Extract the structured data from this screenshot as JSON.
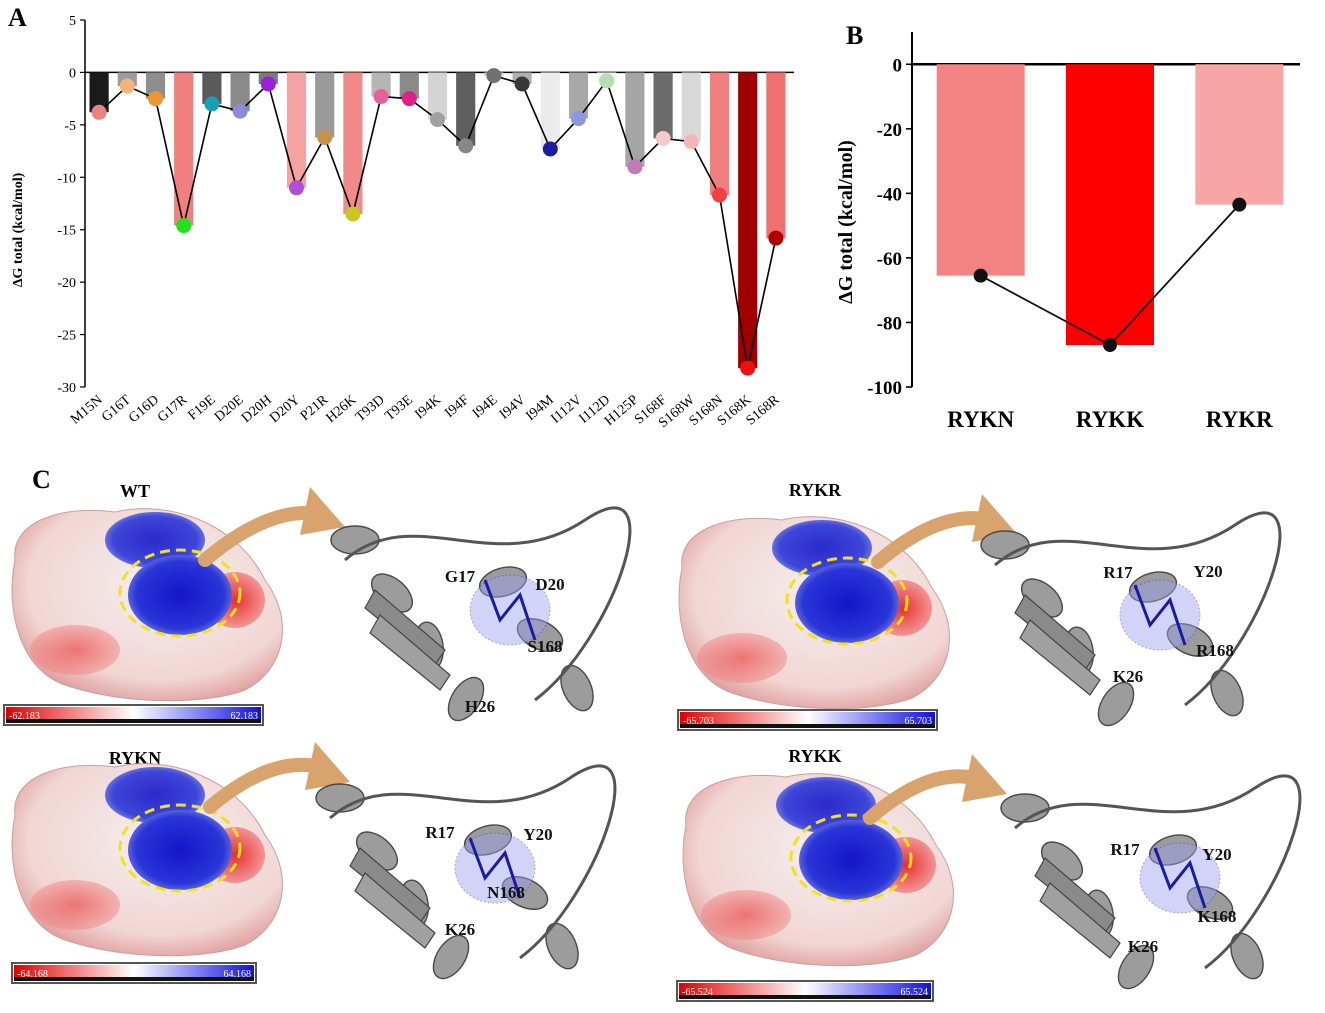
{
  "panels": {
    "a_label": "A",
    "b_label": "B",
    "c_label": "C"
  },
  "chart_data": [
    {
      "type": "bar",
      "panel": "A",
      "ylabel": "ΔG total (kcal/mol)",
      "ylim": [
        -30,
        5
      ],
      "yticks": [
        5,
        0,
        -5,
        -10,
        -15,
        -20,
        -25,
        -30
      ],
      "grid": false,
      "categories": [
        "M15N",
        "G16T",
        "G16D",
        "G17R",
        "F19E",
        "D20E",
        "D20H",
        "D20Y",
        "P21R",
        "H26K",
        "T93D",
        "T93E",
        "I94K",
        "I94F",
        "I94E",
        "I94V",
        "I94M",
        "I112V",
        "I112D",
        "H125P",
        "S168F",
        "S168W",
        "S168N",
        "S168K",
        "S168R"
      ],
      "values": [
        -3.8,
        -1.3,
        -2.5,
        -14.6,
        -3.0,
        -3.7,
        -1.1,
        -11.0,
        -6.2,
        -13.5,
        -2.3,
        -2.5,
        -4.5,
        -7.0,
        -0.3,
        -1.1,
        -7.3,
        -4.4,
        -0.8,
        -9.0,
        -6.3,
        -6.6,
        -11.7,
        -28.2,
        -15.8
      ],
      "bar_colors": [
        "#1a1a1a",
        "#9b9b9b",
        "#8e8e8e",
        "#f08080",
        "#5a5a5a",
        "#8a8a8a",
        "#7a7a7a",
        "#f4a2a2",
        "#9a9a9a",
        "#f28a8a",
        "#b5b5b5",
        "#8a8a8a",
        "#d4d4d4",
        "#5e5e5e",
        "#c8c8c8",
        "#b0b0b0",
        "#ebebeb",
        "#a8a8a8",
        "#f2f2f2",
        "#a5a5a5",
        "#6b6b6b",
        "#d9d9d9",
        "#f08080",
        "#a00000",
        "#f07070"
      ],
      "marker_colors": [
        "#f08080",
        "#f5b27a",
        "#f0952f",
        "#1ee31e",
        "#1aa0b4",
        "#8b8bdc",
        "#9b1fd9",
        "#b050d8",
        "#c8924b",
        "#c8c820",
        "#e8609a",
        "#e02085",
        "#a0a0a0",
        "#888888",
        "#707070",
        "#383838",
        "#1c1c9c",
        "#8b98dc",
        "#b0e0b0",
        "#c07ab8",
        "#f8c8c8",
        "#f5b5b5",
        "#f04040",
        "#f01010",
        "#b00000"
      ]
    },
    {
      "type": "bar",
      "panel": "B",
      "ylabel": "ΔG total (kcal/mol)",
      "ylim": [
        -100,
        10
      ],
      "yticks": [
        0,
        -20,
        -40,
        -60,
        -80,
        -100
      ],
      "grid": false,
      "categories": [
        "RYKN",
        "RYKK",
        "RYKR"
      ],
      "values": [
        -65.5,
        -87.0,
        -43.5
      ],
      "bar_colors": [
        "#f58282",
        "#ff0000",
        "#f8a5a5"
      ],
      "marker_color": "#111111"
    }
  ],
  "structures": [
    {
      "title": "WT",
      "scale_min": "-62.183",
      "scale_max": "62.183",
      "residues": [
        "G17",
        "D20",
        "S168",
        "H26"
      ]
    },
    {
      "title": "RYKR",
      "scale_min": "-65.703",
      "scale_max": "65.703",
      "residues": [
        "R17",
        "Y20",
        "K26",
        "R168"
      ]
    },
    {
      "title": "RYKN",
      "scale_min": "-64.168",
      "scale_max": "64.168",
      "residues": [
        "R17",
        "Y20",
        "N168",
        "K26"
      ]
    },
    {
      "title": "RYKK",
      "scale_min": "-65.524",
      "scale_max": "65.524",
      "residues": [
        "R17",
        "Y20",
        "K168",
        "K26"
      ]
    }
  ]
}
